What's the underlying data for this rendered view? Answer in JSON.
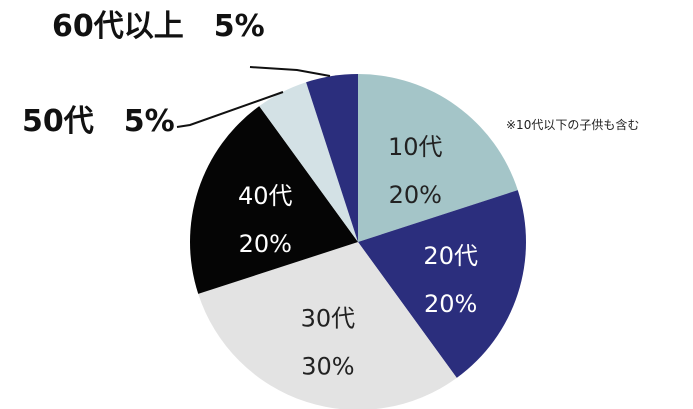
{
  "chart_data": {
    "type": "pie",
    "note": "※10代以下の子供も含む",
    "slices": [
      {
        "category": "10代",
        "value": 20,
        "value_label": "20%",
        "color": "#a4c5c8",
        "text_color": "#222222"
      },
      {
        "category": "20代",
        "value": 20,
        "value_label": "20%",
        "color": "#2b2e7d",
        "text_color": "#ffffff"
      },
      {
        "category": "30代",
        "value": 30,
        "value_label": "30%",
        "color": "#e3e3e3",
        "text_color": "#222222"
      },
      {
        "category": "40代",
        "value": 20,
        "value_label": "20%",
        "color": "#050505",
        "text_color": "#ffffff"
      },
      {
        "category": "50代",
        "value": 5,
        "value_label": "5%",
        "color": "#d3e1e5",
        "text_color": "#111111"
      },
      {
        "category": "60代以上",
        "value": 5,
        "value_label": "5%",
        "color": "#2b2e7d",
        "text_color": "#111111"
      }
    ]
  }
}
